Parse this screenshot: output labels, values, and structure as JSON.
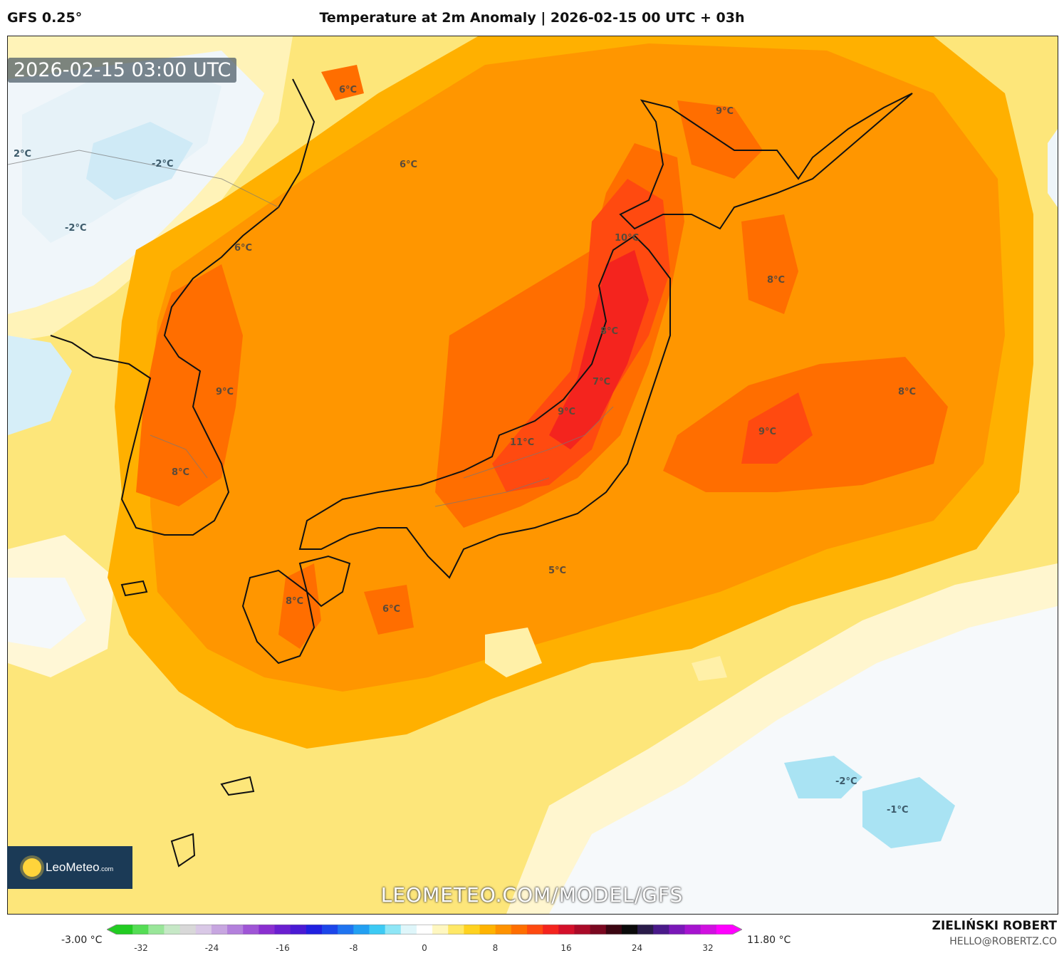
{
  "header": {
    "model": "GFS 0.25°",
    "title": "Temperature at 2m Anomaly | 2026-02-15 00 UTC + 03h"
  },
  "map": {
    "timestamp": "2026-02-15 03:00 UTC",
    "watermark": "LEOMETEO.COM/MODEL/GFS",
    "labels": [
      "6°C",
      "9°C",
      "2°C",
      "-2°C",
      "6°C",
      "-2°C",
      "6°C",
      "10°C",
      "8°C",
      "8°C",
      "9°C",
      "7°C",
      "8°C",
      "9°C",
      "11°C",
      "9°C",
      "8°C",
      "5°C",
      "6°C",
      "8°C",
      "-2°C",
      "-1°C"
    ]
  },
  "logo": {
    "brand": "LeoMeteo",
    "suffix": ".com"
  },
  "colorbar": {
    "min_label": "-3.00 °C",
    "max_label": "11.80 °C",
    "ticks": [
      "-32",
      "-24",
      "-16",
      "-8",
      "0",
      "8",
      "16",
      "24",
      "32"
    ],
    "colors": [
      "#22cc22",
      "#55dd55",
      "#99e699",
      "#c6e8c6",
      "#d8d8d8",
      "#d9c8e6",
      "#c7a6e0",
      "#b380dc",
      "#9f55d6",
      "#8a2fd0",
      "#6a1fd0",
      "#4a1ad4",
      "#2020e0",
      "#1c46ea",
      "#1f74f0",
      "#22a0f2",
      "#3ccaf4",
      "#8ee6f6",
      "#dff6fa",
      "#ffffff",
      "#fff7c0",
      "#ffe866",
      "#ffd21f",
      "#ffb300",
      "#ff9200",
      "#ff6e00",
      "#ff4a10",
      "#f4241e",
      "#d4102a",
      "#aa0a28",
      "#7a0820",
      "#3b0612",
      "#0b0b0b",
      "#2a1c4a",
      "#4a1a8a",
      "#7a18b8",
      "#a614cf",
      "#d010e0",
      "#ff00ff"
    ]
  },
  "author": {
    "name": "ZIELIŃSKI ROBERT",
    "email": "HELLO@ROBERTZ.CO"
  }
}
